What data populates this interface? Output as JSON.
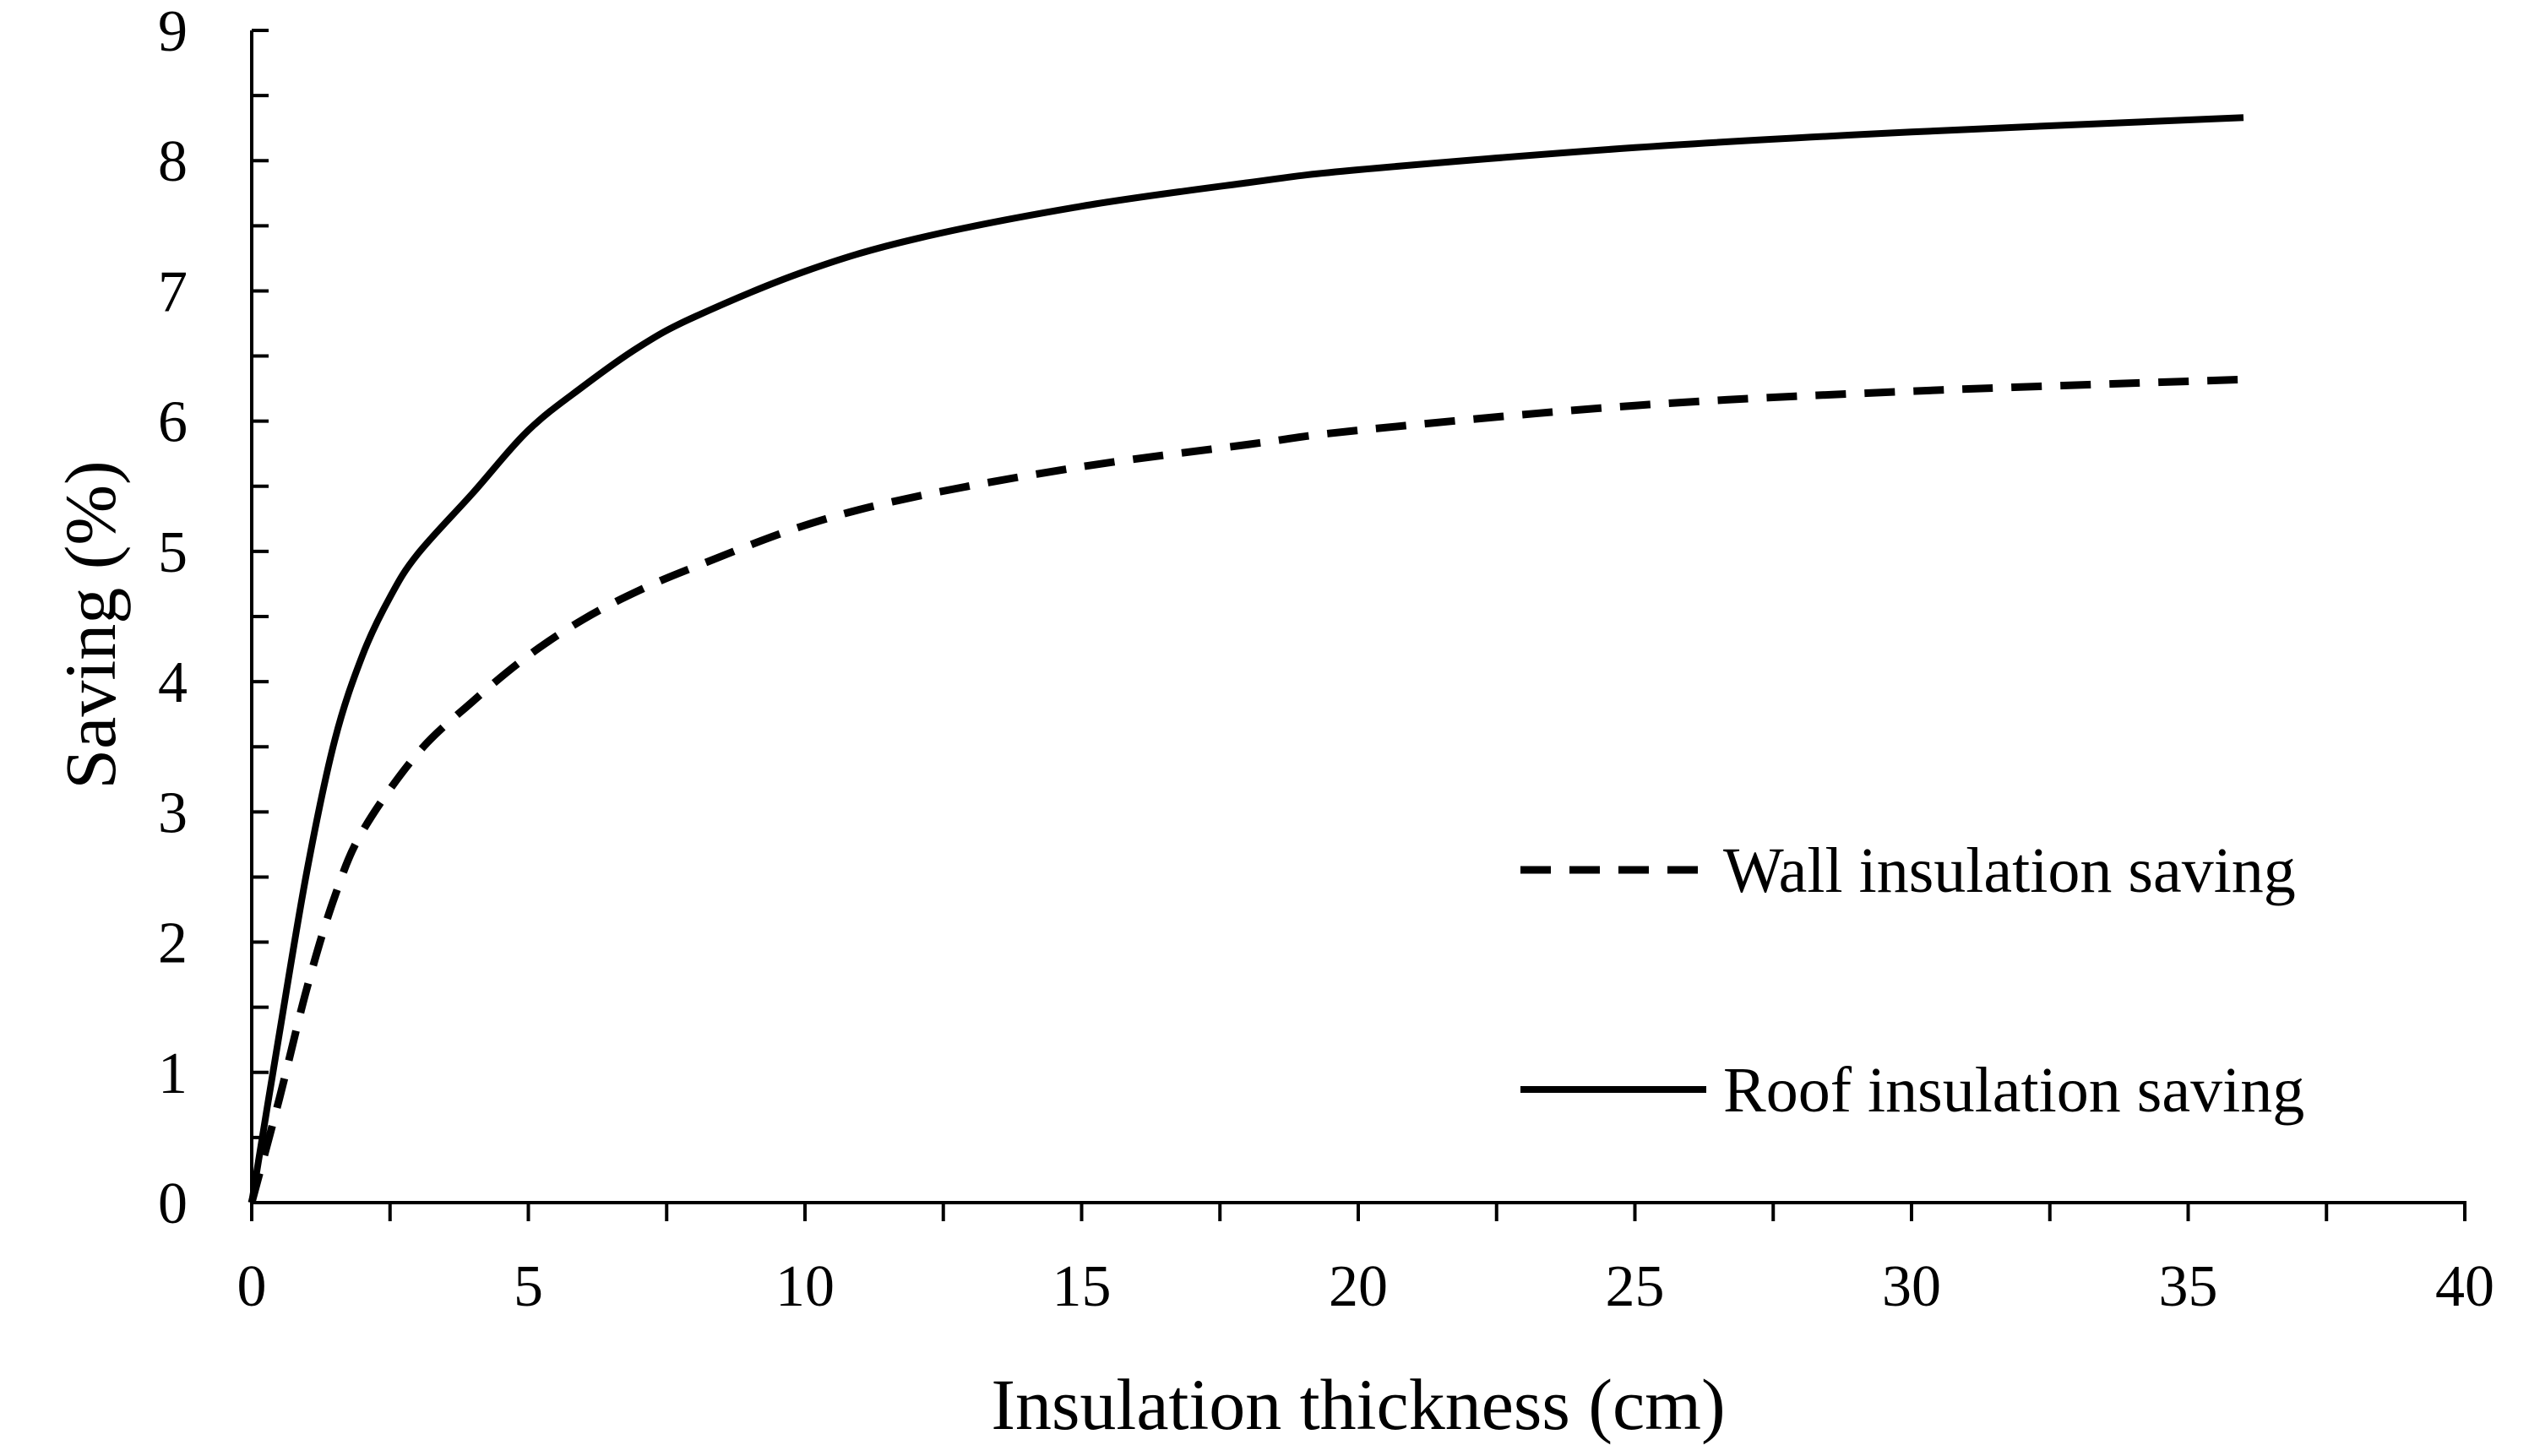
{
  "chart_data": {
    "type": "line",
    "title": "",
    "xlabel": "Insulation thickness (cm)",
    "ylabel": "Saving (%)",
    "xlim": [
      0,
      40
    ],
    "ylim": [
      0,
      9
    ],
    "x_ticks": [
      0,
      5,
      10,
      15,
      20,
      25,
      30,
      35,
      40
    ],
    "y_ticks": [
      0,
      1,
      2,
      3,
      4,
      5,
      6,
      7,
      8,
      9
    ],
    "grid": false,
    "legend_position": "right",
    "series": [
      {
        "name": "Wall insulation saving",
        "style": "dashed",
        "color": "#000000",
        "x": [
          0,
          0.5,
          1,
          1.5,
          2,
          3,
          4,
          5,
          6,
          7,
          8,
          10,
          12,
          15,
          18,
          20,
          25,
          30,
          36
        ],
        "values": [
          0,
          0.8,
          1.65,
          2.35,
          2.85,
          3.45,
          3.85,
          4.2,
          4.48,
          4.7,
          4.88,
          5.2,
          5.42,
          5.65,
          5.82,
          5.93,
          6.12,
          6.23,
          6.32
        ]
      },
      {
        "name": "Roof insulation saving",
        "style": "solid",
        "color": "#000000",
        "x": [
          0,
          0.5,
          1,
          1.5,
          2,
          2.5,
          3,
          4,
          5,
          6,
          7,
          8,
          10,
          12,
          15,
          18,
          20,
          25,
          30,
          36
        ],
        "values": [
          0,
          1.3,
          2.55,
          3.55,
          4.2,
          4.65,
          4.98,
          5.45,
          5.93,
          6.27,
          6.57,
          6.8,
          7.15,
          7.4,
          7.65,
          7.83,
          7.93,
          8.1,
          8.22,
          8.33
        ]
      }
    ]
  }
}
